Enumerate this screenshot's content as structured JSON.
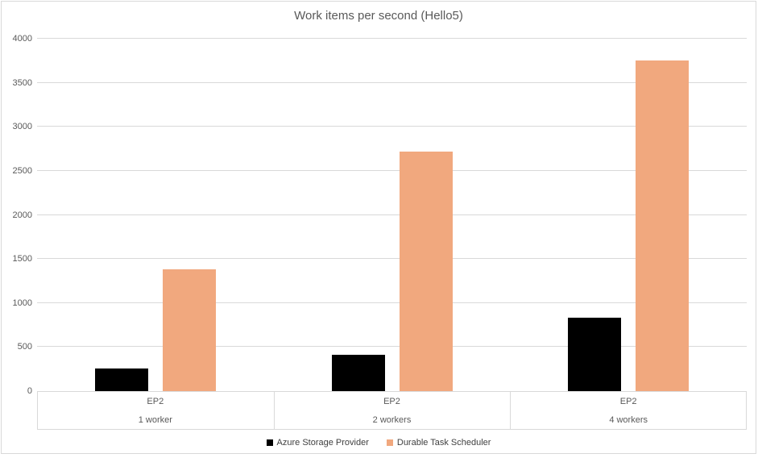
{
  "chart_data": {
    "type": "bar",
    "title": "Work items per second (Hello5)",
    "categories": [
      {
        "tier1": "EP2",
        "tier2": "1 worker"
      },
      {
        "tier1": "EP2",
        "tier2": "2 workers"
      },
      {
        "tier1": "EP2",
        "tier2": "4 workers"
      }
    ],
    "series": [
      {
        "name": "Azure Storage Provider",
        "color": "#000000",
        "values": [
          260,
          415,
          830
        ]
      },
      {
        "name": "Durable Task Scheduler",
        "color": "#F1A87E",
        "values": [
          1385,
          2715,
          3755
        ]
      }
    ],
    "y_axis": {
      "min": 0,
      "max": 4000,
      "step": 500,
      "ticks": [
        0,
        500,
        1000,
        1500,
        2000,
        2500,
        3000,
        3500,
        4000
      ]
    },
    "xlabel": "",
    "ylabel": "",
    "grid": true,
    "legend_position": "bottom",
    "colors": {
      "grid": "#d9d9d9",
      "axis_text": "#595959",
      "title_text": "#595959",
      "legend_text": "#404040",
      "frame_border": "#d9d9d9"
    }
  }
}
